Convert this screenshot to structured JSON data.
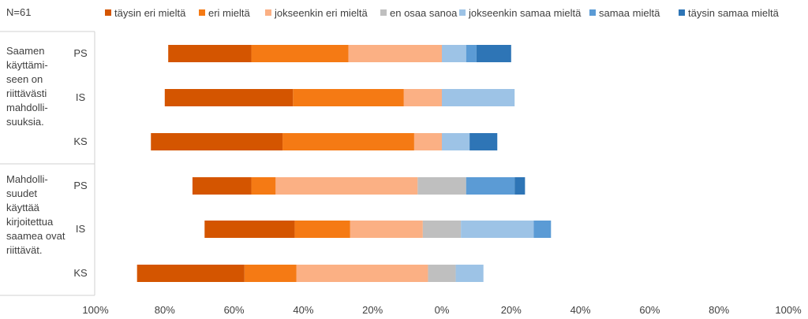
{
  "chart_data": {
    "type": "bar",
    "orientation": "horizontal",
    "stacking": "diverging",
    "note": "N=61",
    "legend_position": "top",
    "xlim": [
      -100,
      100
    ],
    "x_ticks": [
      -100,
      -80,
      -60,
      -40,
      -20,
      0,
      20,
      40,
      60,
      80,
      100
    ],
    "x_tick_labels": [
      "100%",
      "80%",
      "60%",
      "40%",
      "20%",
      "0%",
      "20%",
      "40%",
      "60%",
      "80%",
      "100%"
    ],
    "groups": [
      {
        "label": "Saamen käyttämi-seen on riittävästi mahdolli-suuksia.",
        "label_lines": [
          "Saamen",
          "käyttämi-",
          "seen on",
          "riittävästi",
          "mahdolli-",
          "suuksia."
        ],
        "categories": [
          "PS",
          "IS",
          "KS"
        ]
      },
      {
        "label": "Mahdolli-suudet käyttää kirjoitettua saamea ovat riittävät.",
        "label_lines": [
          "Mahdolli-",
          "suudet",
          "käyttää",
          "kirjoitettua",
          "saamea ovat",
          "riittävät."
        ],
        "categories": [
          "PS",
          "IS",
          "KS"
        ]
      }
    ],
    "categories": [
      "PS",
      "IS",
      "KS",
      "PS",
      "IS",
      "KS"
    ],
    "series": [
      {
        "name": "täysin eri mieltä",
        "side": "negative",
        "color": "#d45500",
        "values": [
          24,
          37,
          38,
          17,
          26,
          31
        ]
      },
      {
        "name": "eri mieltä",
        "side": "negative",
        "color": "#f57a14",
        "values": [
          28,
          32,
          38,
          7,
          16,
          15
        ]
      },
      {
        "name": "jokseenkin eri mieltä",
        "side": "negative",
        "color": "#fbb084",
        "values": [
          27,
          11,
          8,
          41,
          21,
          38
        ]
      },
      {
        "name": "en osaa sanoa",
        "side": "center",
        "color": "#bfbfbf",
        "values": [
          0,
          0,
          0,
          14,
          11,
          8
        ]
      },
      {
        "name": "jokseenkin samaa mieltä",
        "side": "positive",
        "color": "#9dc3e6",
        "values": [
          7,
          21,
          8,
          0,
          21,
          8
        ]
      },
      {
        "name": "samaa mieltä",
        "side": "positive",
        "color": "#5b9bd5",
        "values": [
          3,
          0,
          0,
          14,
          5,
          0
        ]
      },
      {
        "name": "täysin samaa mieltä",
        "side": "positive",
        "color": "#2e75b6",
        "values": [
          10,
          0,
          8,
          3,
          0,
          0
        ]
      }
    ]
  }
}
